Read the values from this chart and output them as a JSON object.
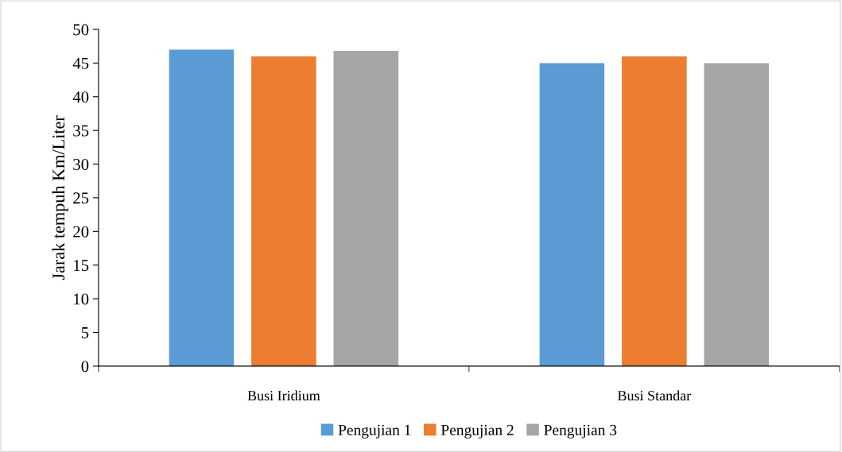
{
  "chart_data": {
    "type": "bar",
    "ylabel": "Jarak tempuh Km/Liter",
    "categories": [
      "Busi Iridium",
      "Busi Standar"
    ],
    "series": [
      {
        "name": "Pengujian 1",
        "color": "#5b9bd5",
        "values": [
          47,
          45
        ]
      },
      {
        "name": "Pengujian 2",
        "color": "#ed7d31",
        "values": [
          46,
          46
        ]
      },
      {
        "name": "Pengujian 3",
        "color": "#a5a5a5",
        "values": [
          46.8,
          45
        ]
      }
    ],
    "ylim": [
      0,
      50
    ],
    "yticks": [
      0,
      5,
      10,
      15,
      20,
      25,
      30,
      35,
      40,
      45,
      50
    ],
    "grid": false,
    "legend": "bottom"
  }
}
